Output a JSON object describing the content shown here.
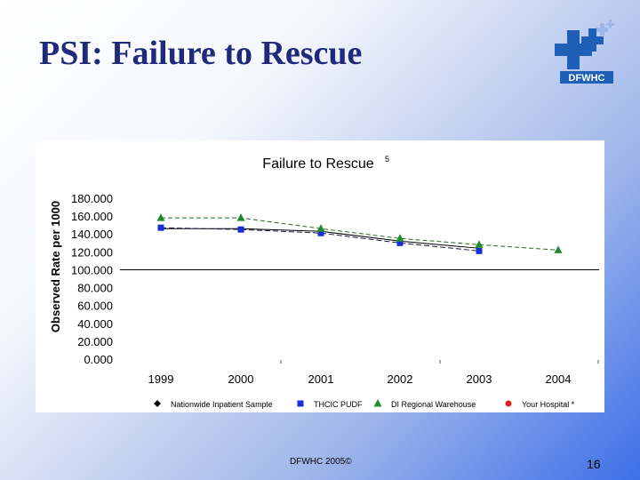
{
  "slide": {
    "title": "PSI: Failure to Rescue",
    "footer": "DFWHC 2005©",
    "page_number": "16"
  },
  "logo": {
    "text": "DFWHC",
    "icon": "medical-cross-logo",
    "color": "#1f5fb8"
  },
  "chart_data": {
    "type": "line",
    "title": "Failure to Rescue",
    "title_superscript": "5",
    "xlabel": "",
    "ylabel": "Observed Rate per 1000",
    "categories": [
      "1999",
      "2000",
      "2001",
      "2002",
      "2003",
      "2004"
    ],
    "y_ticks": [
      "180.000",
      "160.000",
      "140.000",
      "120.000",
      "100.000",
      "80.000",
      "60.000",
      "40.000",
      "20.000",
      "0.000"
    ],
    "ylim": [
      0,
      180
    ],
    "reference_line": 100,
    "grid": false,
    "legend_position": "bottom",
    "series": [
      {
        "name": "Nationwide Inpatient Sample",
        "marker": "diamond",
        "color": "#000000",
        "values": [
          146,
          146,
          143,
          132,
          124,
          null
        ],
        "line": "solid"
      },
      {
        "name": "THCIC PUDF",
        "marker": "square",
        "color": "#1a2bd8",
        "values": [
          147,
          145,
          141,
          130,
          121,
          null
        ],
        "line": "dashed-dark"
      },
      {
        "name": "DI Regional Warehouse",
        "marker": "triangle",
        "color": "#1f8c2a",
        "values": [
          158,
          158,
          146,
          135,
          128,
          122
        ],
        "line": "dashed-green"
      },
      {
        "name": "Your Hospital *",
        "marker": "circle",
        "color": "#e02020",
        "values": [
          null,
          null,
          null,
          null,
          null,
          null
        ],
        "line": "none"
      }
    ]
  }
}
